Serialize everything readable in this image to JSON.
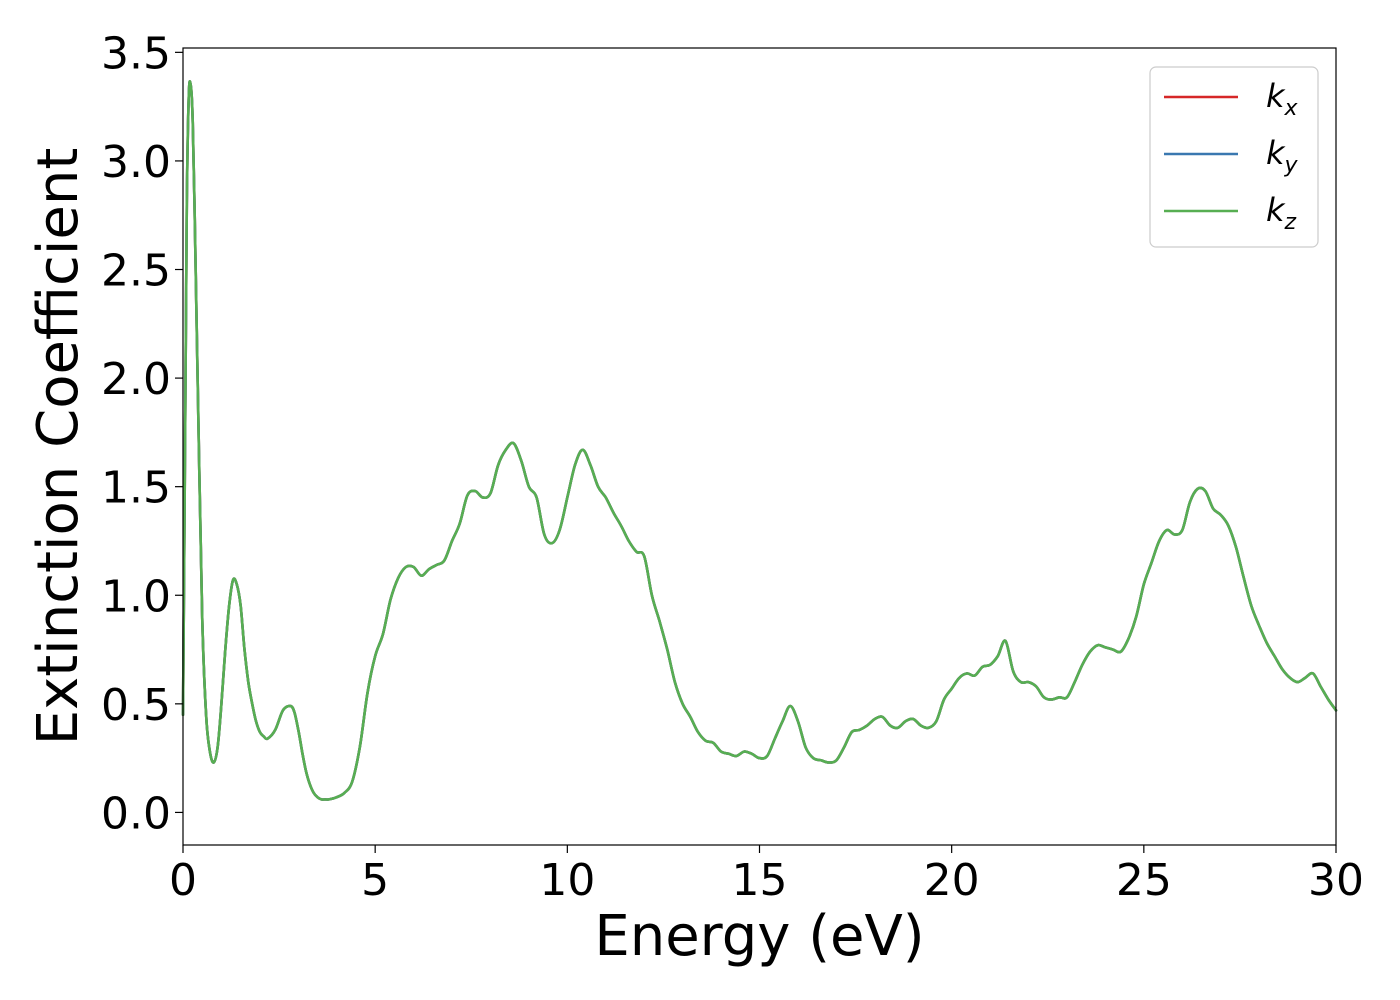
{
  "chart_data": {
    "type": "line",
    "title": "",
    "xlabel": "Energy (eV)",
    "ylabel": "Extinction Coefficient",
    "xlim": [
      0,
      30
    ],
    "ylim": [
      -0.15,
      3.52
    ],
    "xticks": [
      0,
      5,
      10,
      15,
      20,
      25,
      30
    ],
    "xtick_labels": [
      "0",
      "5",
      "10",
      "15",
      "20",
      "25",
      "30"
    ],
    "yticks": [
      0.0,
      0.5,
      1.0,
      1.5,
      2.0,
      2.5,
      3.0,
      3.5
    ],
    "ytick_labels": [
      "0.0",
      "0.5",
      "1.0",
      "1.5",
      "2.0",
      "2.5",
      "3.0",
      "3.5"
    ],
    "grid": false,
    "legend_position": "top-right",
    "x": [
      0,
      0.05,
      0.1,
      0.15,
      0.2,
      0.25,
      0.3,
      0.4,
      0.5,
      0.6,
      0.7,
      0.8,
      0.9,
      1.0,
      1.1,
      1.2,
      1.3,
      1.4,
      1.5,
      1.6,
      1.7,
      1.8,
      1.9,
      2.0,
      2.1,
      2.2,
      2.4,
      2.6,
      2.8,
      2.9,
      3.0,
      3.1,
      3.2,
      3.3,
      3.4,
      3.5,
      3.6,
      3.7,
      3.8,
      4.0,
      4.2,
      4.4,
      4.6,
      4.8,
      5.0,
      5.2,
      5.4,
      5.6,
      5.8,
      6.0,
      6.2,
      6.4,
      6.6,
      6.8,
      7.0,
      7.2,
      7.4,
      7.6,
      7.8,
      8.0,
      8.2,
      8.4,
      8.6,
      8.8,
      9.0,
      9.2,
      9.4,
      9.6,
      9.8,
      10.0,
      10.2,
      10.4,
      10.6,
      10.8,
      11.0,
      11.2,
      11.4,
      11.6,
      11.8,
      12.0,
      12.2,
      12.4,
      12.6,
      12.8,
      13.0,
      13.2,
      13.4,
      13.6,
      13.8,
      14.0,
      14.2,
      14.4,
      14.6,
      14.8,
      15.0,
      15.2,
      15.4,
      15.6,
      15.8,
      16.0,
      16.2,
      16.4,
      16.6,
      16.8,
      17.0,
      17.2,
      17.4,
      17.6,
      17.8,
      18.0,
      18.2,
      18.4,
      18.6,
      18.8,
      19.0,
      19.2,
      19.4,
      19.6,
      19.8,
      20.0,
      20.2,
      20.4,
      20.6,
      20.8,
      21.0,
      21.2,
      21.4,
      21.6,
      21.8,
      22.0,
      22.2,
      22.4,
      22.6,
      22.8,
      23.0,
      23.2,
      23.4,
      23.6,
      23.8,
      24.0,
      24.2,
      24.4,
      24.6,
      24.8,
      25.0,
      25.2,
      25.4,
      25.6,
      25.8,
      26.0,
      26.2,
      26.4,
      26.6,
      26.8,
      27.0,
      27.2,
      27.4,
      27.6,
      27.8,
      28.0,
      28.2,
      28.4,
      28.6,
      28.8,
      29.0,
      29.2,
      29.4,
      29.6,
      29.8,
      30.0
    ],
    "y": [
      0.45,
      1.6,
      2.8,
      3.3,
      3.35,
      3.2,
      2.8,
      1.8,
      0.9,
      0.45,
      0.28,
      0.23,
      0.3,
      0.5,
      0.75,
      0.95,
      1.07,
      1.05,
      0.95,
      0.75,
      0.6,
      0.5,
      0.42,
      0.37,
      0.35,
      0.34,
      0.38,
      0.47,
      0.49,
      0.46,
      0.38,
      0.28,
      0.19,
      0.13,
      0.09,
      0.07,
      0.06,
      0.06,
      0.06,
      0.07,
      0.09,
      0.14,
      0.3,
      0.55,
      0.72,
      0.82,
      0.98,
      1.08,
      1.13,
      1.13,
      1.09,
      1.12,
      1.14,
      1.16,
      1.25,
      1.33,
      1.46,
      1.48,
      1.45,
      1.47,
      1.6,
      1.67,
      1.7,
      1.62,
      1.5,
      1.45,
      1.28,
      1.24,
      1.3,
      1.45,
      1.6,
      1.67,
      1.6,
      1.5,
      1.45,
      1.38,
      1.32,
      1.25,
      1.2,
      1.18,
      1.0,
      0.88,
      0.75,
      0.6,
      0.5,
      0.44,
      0.37,
      0.33,
      0.32,
      0.28,
      0.27,
      0.26,
      0.28,
      0.27,
      0.25,
      0.26,
      0.34,
      0.42,
      0.49,
      0.42,
      0.3,
      0.25,
      0.24,
      0.23,
      0.24,
      0.3,
      0.37,
      0.38,
      0.4,
      0.43,
      0.44,
      0.4,
      0.39,
      0.42,
      0.43,
      0.4,
      0.39,
      0.42,
      0.52,
      0.57,
      0.62,
      0.64,
      0.63,
      0.67,
      0.68,
      0.72,
      0.79,
      0.65,
      0.6,
      0.6,
      0.58,
      0.53,
      0.52,
      0.53,
      0.53,
      0.6,
      0.68,
      0.74,
      0.77,
      0.76,
      0.75,
      0.74,
      0.8,
      0.9,
      1.05,
      1.15,
      1.25,
      1.3,
      1.28,
      1.3,
      1.43,
      1.49,
      1.48,
      1.4,
      1.37,
      1.32,
      1.22,
      1.08,
      0.95,
      0.86,
      0.78,
      0.72,
      0.66,
      0.62,
      0.6,
      0.62,
      0.64,
      0.58,
      0.52,
      0.47
    ],
    "series": [
      {
        "name": "k",
        "subscript": "x",
        "color": "#d62728",
        "values_ref": "y"
      },
      {
        "name": "k",
        "subscript": "y",
        "color": "#3a78b0",
        "values_ref": "y"
      },
      {
        "name": "k",
        "subscript": "z",
        "color": "#57ae52",
        "values_ref": "y"
      }
    ]
  }
}
